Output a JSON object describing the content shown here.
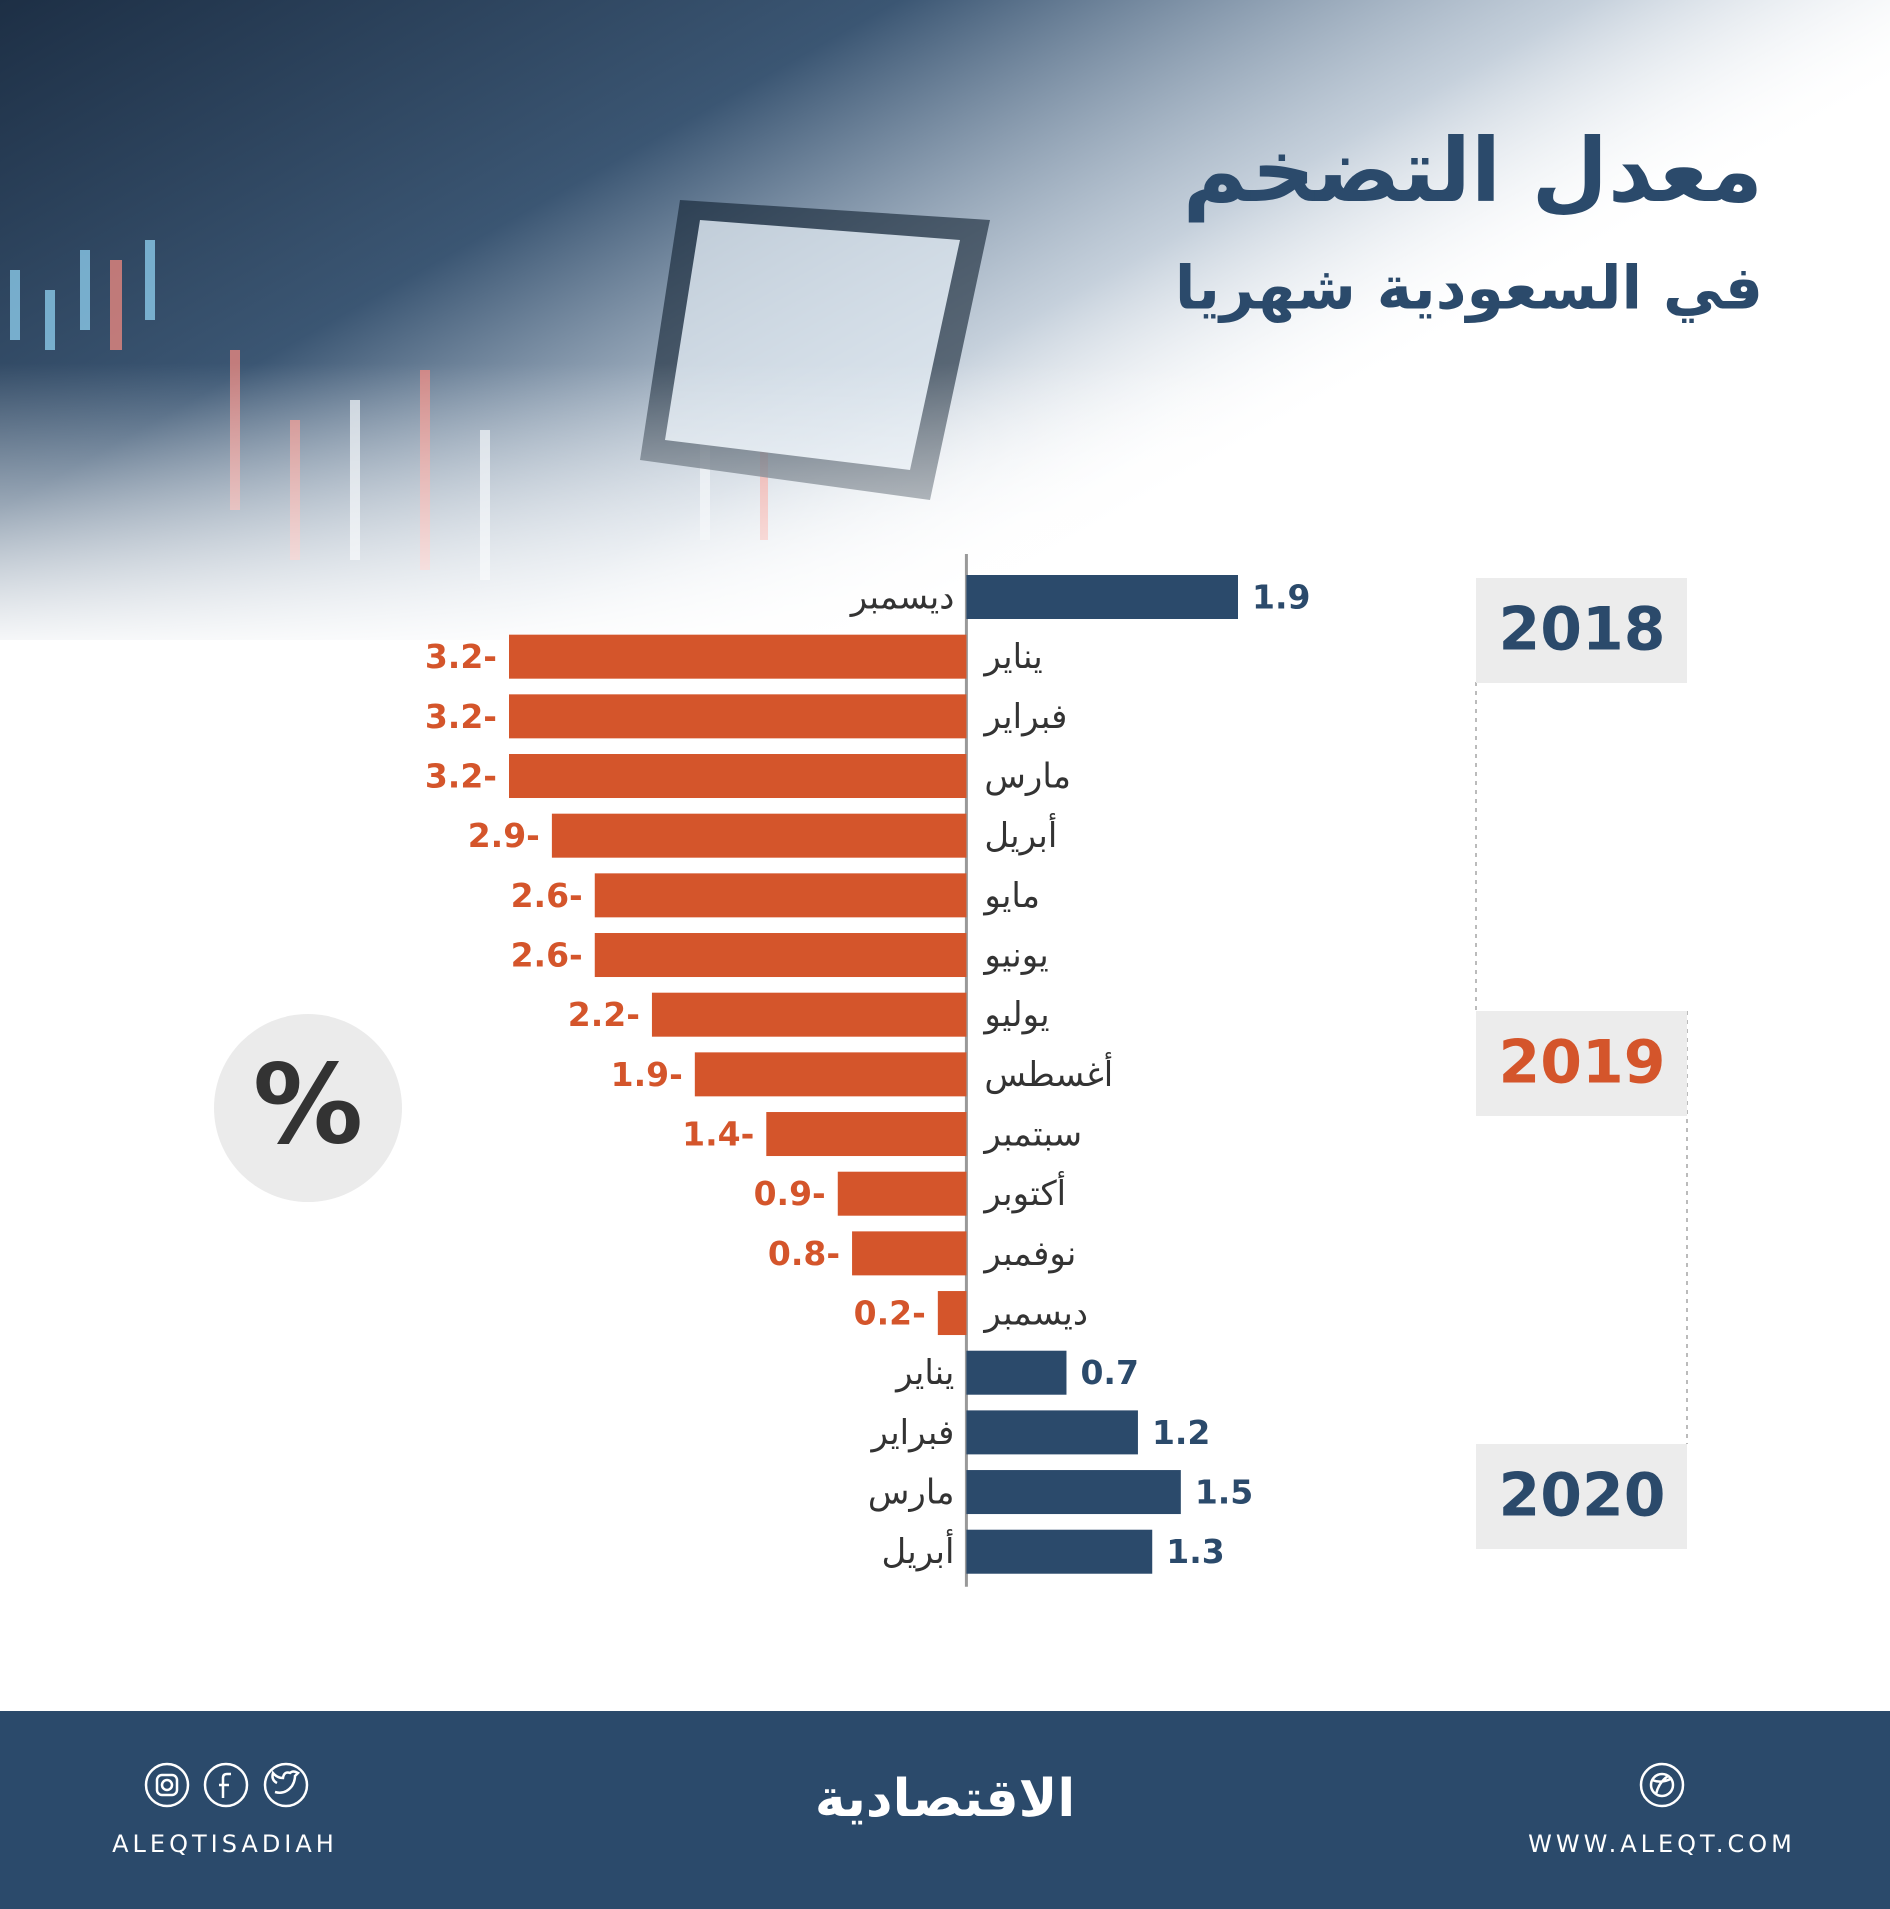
{
  "chart_data": {
    "type": "bar",
    "orientation": "horizontal",
    "title": "معدل التضخم",
    "subtitle": "في السعودية شهريا",
    "unit_symbol": "%",
    "years": [
      "2018",
      "2019",
      "2020"
    ],
    "categories": [
      "ديسمبر",
      "يناير",
      "فبراير",
      "مارس",
      "أبريل",
      "مايو",
      "يونيو",
      "يوليو",
      "أغسطس",
      "سبتمبر",
      "أكتوبر",
      "نوفمبر",
      "ديسمبر",
      "يناير",
      "فبراير",
      "مارس",
      "أبريل"
    ],
    "values": [
      1.9,
      -3.2,
      -3.2,
      -3.2,
      -2.9,
      -2.6,
      -2.6,
      -2.2,
      -1.9,
      -1.4,
      -0.9,
      -0.8,
      -0.2,
      0.7,
      1.2,
      1.5,
      1.3
    ],
    "value_labels": [
      "1.9",
      "3.2-",
      "3.2-",
      "3.2-",
      "2.9-",
      "2.6-",
      "2.6-",
      "2.2-",
      "1.9-",
      "1.4-",
      "0.9-",
      "0.8-",
      "0.2-",
      "0.7",
      "1.2",
      "1.5",
      "1.3"
    ],
    "xlim": [
      -3.2,
      1.9
    ],
    "positive_color": "#2b4a6b",
    "negative_color": "#d4552b"
  },
  "footer": {
    "logo": "الاقتصادية",
    "handle": "ALEQTISADIAH",
    "website": "WWW.ALEQT.COM"
  }
}
